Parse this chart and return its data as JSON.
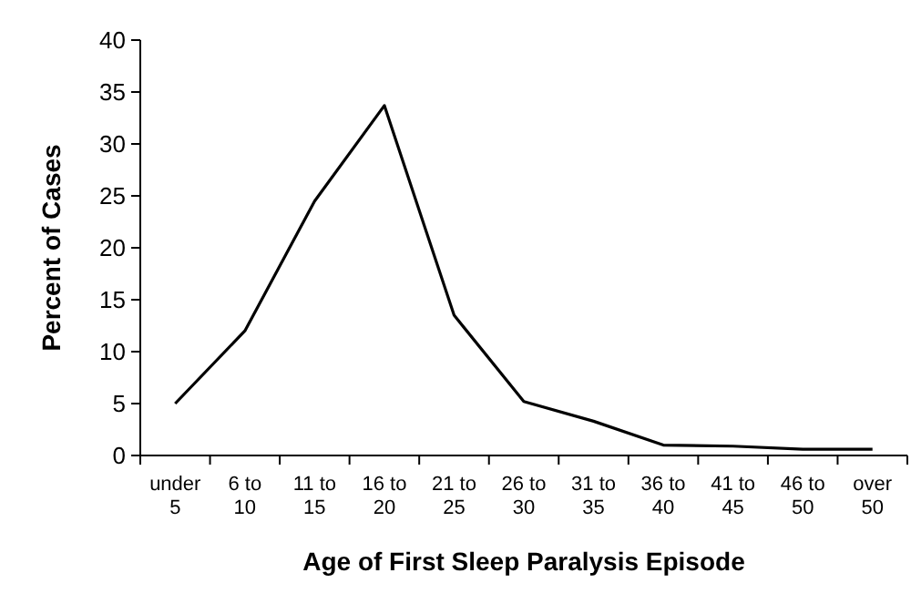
{
  "chart_data": {
    "type": "line",
    "xlabel": "Age of First Sleep Paralysis Episode",
    "ylabel": "Percent of Cases",
    "categories": [
      "under 5",
      "6 to 10",
      "11 to 15",
      "16 to 20",
      "21 to 25",
      "26 to 30",
      "31 to 35",
      "36 to 40",
      "41 to 45",
      "46 to 50",
      "over 50"
    ],
    "series": [
      {
        "color": "#000000",
        "values": [
          5,
          12,
          24.5,
          33.7,
          13.5,
          5.2,
          3.3,
          1,
          0.9,
          0.6,
          0.6
        ]
      }
    ],
    "ylim": [
      0,
      40
    ],
    "yticks": [
      0,
      5,
      10,
      15,
      20,
      25,
      30,
      35,
      40
    ],
    "grid": false,
    "marker": "none",
    "line_style": "solid"
  }
}
